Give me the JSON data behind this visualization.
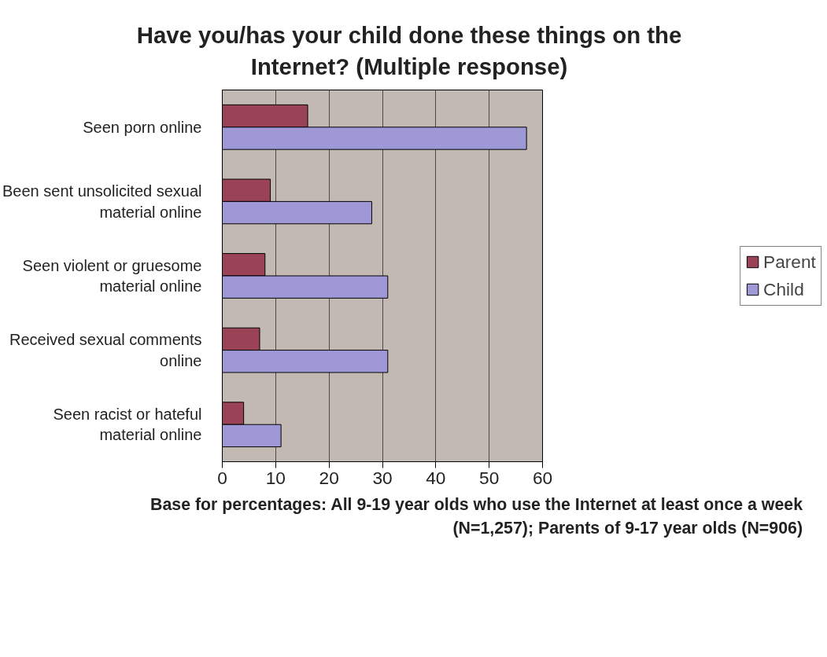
{
  "chart_data": {
    "type": "bar",
    "orientation": "horizontal",
    "title": "Have you/has your child done these things on the Internet? (Multiple response)",
    "categories": [
      "Seen porn online",
      "Been sent unsolicited sexual material online",
      "Seen violent or gruesome material online",
      "Received sexual comments online",
      "Seen racist or hateful material online"
    ],
    "series": [
      {
        "name": "Parent",
        "color": "#9b4356",
        "values": [
          16,
          9,
          8,
          7,
          4
        ]
      },
      {
        "name": "Child",
        "color": "#9e99d6",
        "values": [
          57,
          28,
          31,
          31,
          11
        ]
      }
    ],
    "xlim": [
      0,
      60
    ],
    "xticks": [
      0,
      10,
      20,
      30,
      40,
      50,
      60
    ],
    "grid": "x",
    "legend": "right",
    "annotations": [
      "Base for percentages: All 9-19 year olds who use the Internet at least once a week (N=1,257); Parents of 9-17 year olds (N=906)"
    ]
  }
}
